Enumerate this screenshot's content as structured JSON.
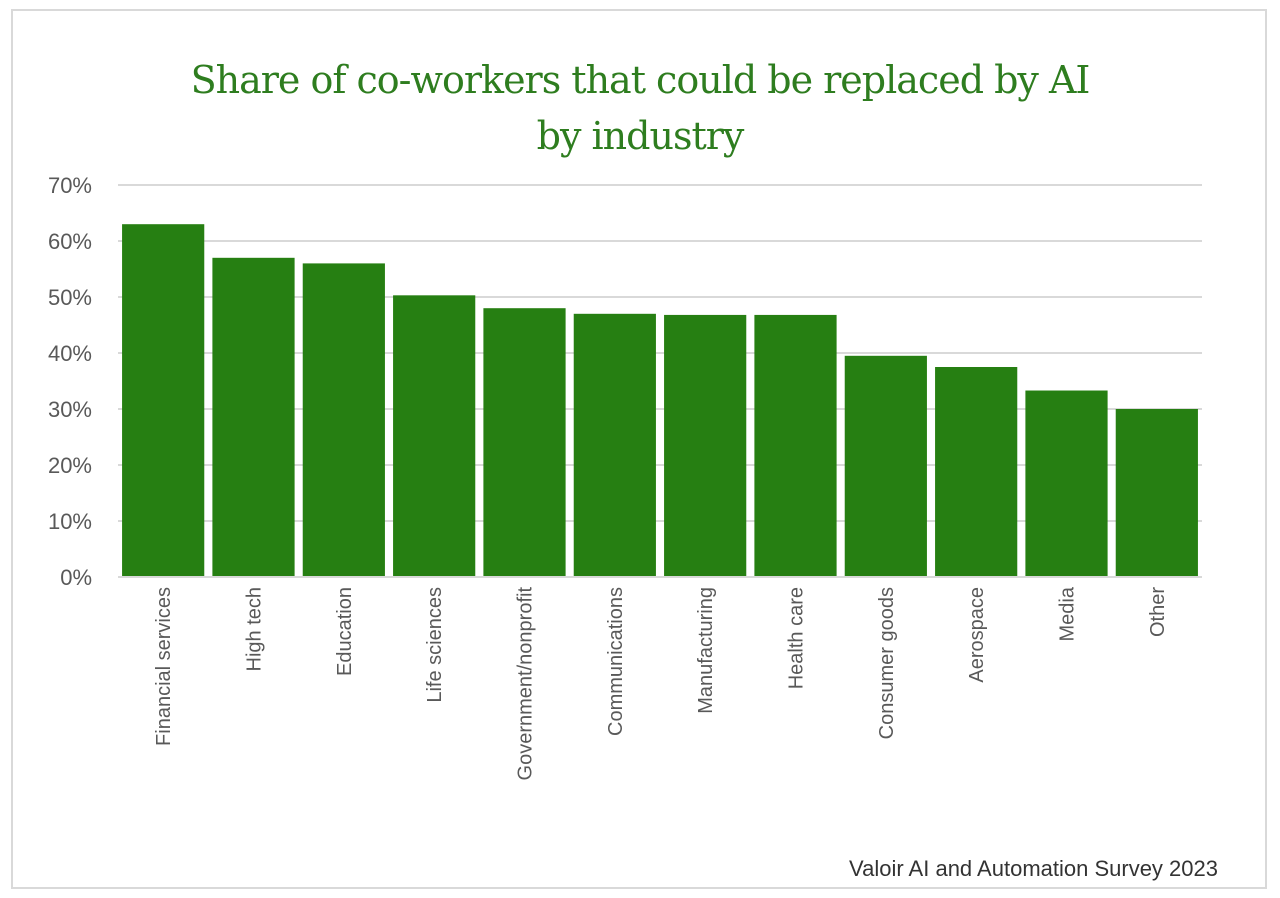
{
  "chart_data": {
    "type": "bar",
    "title_lines": [
      "Share of co-workers that could be replaced by AI",
      "by industry"
    ],
    "categories": [
      "Financial services",
      "High tech",
      "Education",
      "Life sciences",
      "Government/nonprofit",
      "Communications",
      "Manufacturing",
      "Health care",
      "Consumer goods",
      "Aerospace",
      "Media",
      "Other"
    ],
    "values": [
      63,
      57,
      56,
      50.3,
      48,
      47,
      46.8,
      46.8,
      39.5,
      37.5,
      33.3,
      30
    ],
    "value_format": "percent",
    "ylim": [
      0,
      70
    ],
    "yticks": [
      0,
      10,
      20,
      30,
      40,
      50,
      60,
      70
    ],
    "ytick_labels": [
      "0%",
      "10%",
      "20%",
      "30%",
      "40%",
      "50%",
      "60%",
      "70%"
    ],
    "xlabel": "",
    "ylabel": "",
    "grid": true,
    "bar_color": "#267f12",
    "grid_color": "#d9d9d9",
    "title_color": "#2e7d1f"
  },
  "source": "Valoir AI and Automation Survey 2023"
}
